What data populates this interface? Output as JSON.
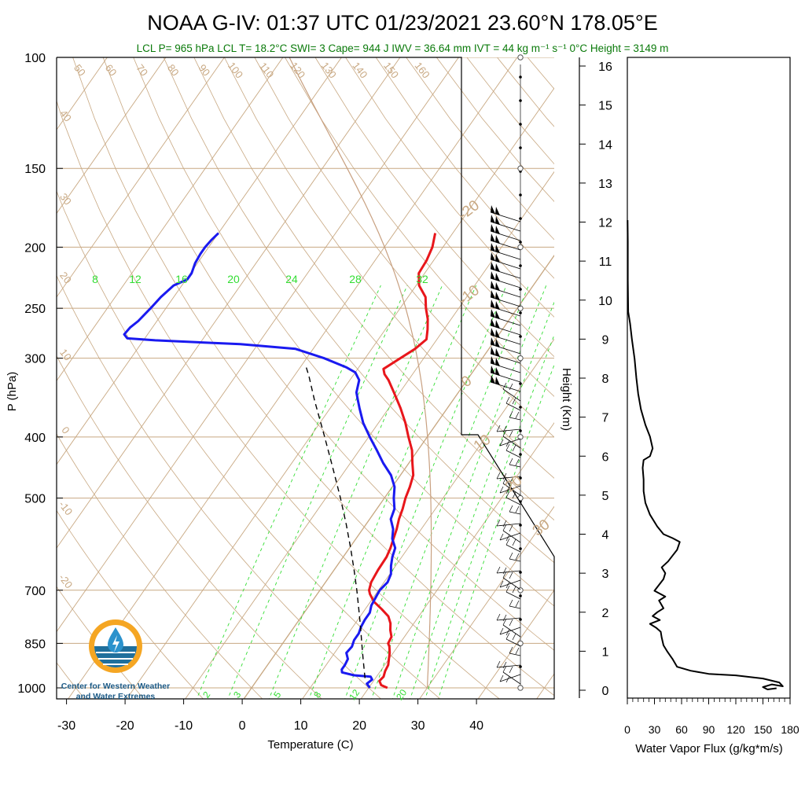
{
  "header": {
    "title": "NOAA G-IV: 01:37 UTC 01/23/2021  23.60°N 178.05°E",
    "subtitle": "LCL P= 965 hPa  LCL T= 18.2°C  SWI= 3  Cape= 944 J  IWV = 36.64 mm  IVT = 44 kg m⁻¹ s⁻¹  0°C Height = 3149 m"
  },
  "logo": {
    "line1": "Center for Western Weather",
    "line2": "and Water Extremes"
  },
  "colors": {
    "temperature": "#e8161b",
    "dewpoint": "#1a1af0",
    "parcel": "#000000",
    "isotherm": "#c8a882",
    "mixing_ratio": "#33dd33",
    "title_green": "#0a7a0a"
  },
  "chart_data": [
    {
      "type": "line",
      "name": "skew-t",
      "xlabel": "Temperature (C)",
      "ylabel": "P (hPa)",
      "xlim": [
        -34,
        52
      ],
      "ylim": [
        1050,
        100
      ],
      "y_scale": "log",
      "x_ticks": [
        -30,
        -20,
        -10,
        0,
        10,
        20,
        30,
        40
      ],
      "y_ticks": [
        100,
        150,
        200,
        250,
        300,
        400,
        500,
        700,
        850,
        1000
      ],
      "isotherm_labels": [
        "-20",
        "-10",
        "0",
        "10",
        "20",
        "30"
      ],
      "dry_adiabat_labels": [
        "50",
        "60",
        "70",
        "80",
        "90",
        "100",
        "110",
        "120",
        "130",
        "140",
        "150",
        "160"
      ],
      "dry_adiabat_left_labels": [
        "40",
        "30",
        "20",
        "10",
        "0",
        "-10",
        "-20"
      ],
      "mixing_ratio_labels_top": [
        "8",
        "12",
        "16",
        "20",
        "24",
        "28",
        "32"
      ],
      "mixing_ratio_labels_bottom": [
        "2",
        "3",
        "5",
        "8",
        "12",
        "20"
      ],
      "series": [
        {
          "name": "temperature",
          "points": [
            [
              1000,
              23.2
            ],
            [
              990,
              21.8
            ],
            [
              975,
              21.0
            ],
            [
              960,
              21.2
            ],
            [
              940,
              20.8
            ],
            [
              920,
              20.6
            ],
            [
              900,
              20.0
            ],
            [
              880,
              19.4
            ],
            [
              860,
              18.6
            ],
            [
              850,
              18.0
            ],
            [
              830,
              17.8
            ],
            [
              810,
              16.8
            ],
            [
              790,
              16.0
            ],
            [
              770,
              14.8
            ],
            [
              750,
              12.8
            ],
            [
              730,
              10.6
            ],
            [
              710,
              9.0
            ],
            [
              700,
              8.4
            ],
            [
              680,
              7.8
            ],
            [
              650,
              7.5
            ],
            [
              620,
              7.4
            ],
            [
              600,
              7.0
            ],
            [
              580,
              6.4
            ],
            [
              560,
              5.8
            ],
            [
              540,
              5.0
            ],
            [
              520,
              4.4
            ],
            [
              500,
              3.6
            ],
            [
              480,
              3.0
            ],
            [
              460,
              2.2
            ],
            [
              440,
              0.6
            ],
            [
              420,
              -1.0
            ],
            [
              400,
              -3.2
            ],
            [
              380,
              -5.4
            ],
            [
              360,
              -8.0
            ],
            [
              340,
              -11.0
            ],
            [
              325,
              -13.4
            ],
            [
              318,
              -14.8
            ],
            [
              312,
              -15.6
            ],
            [
              300,
              -14.0
            ],
            [
              290,
              -12.6
            ],
            [
              280,
              -11.8
            ],
            [
              270,
              -12.8
            ],
            [
              260,
              -14.0
            ],
            [
              250,
              -15.6
            ],
            [
              240,
              -17.0
            ],
            [
              230,
              -19.5
            ],
            [
              220,
              -21.0
            ],
            [
              210,
              -21.2
            ],
            [
              200,
              -21.8
            ],
            [
              190,
              -23.0
            ]
          ]
        },
        {
          "name": "dewpoint",
          "points": [
            [
              1000,
              20.2
            ],
            [
              985,
              19.2
            ],
            [
              970,
              19.6
            ],
            [
              960,
              19.0
            ],
            [
              955,
              16.0
            ],
            [
              945,
              13.6
            ],
            [
              935,
              13.2
            ],
            [
              920,
              13.2
            ],
            [
              900,
              13.0
            ],
            [
              880,
              12.0
            ],
            [
              860,
              12.2
            ],
            [
              840,
              11.8
            ],
            [
              820,
              11.8
            ],
            [
              800,
              11.4
            ],
            [
              780,
              11.2
            ],
            [
              760,
              11.2
            ],
            [
              740,
              10.6
            ],
            [
              720,
              10.4
            ],
            [
              700,
              10.2
            ],
            [
              680,
              10.6
            ],
            [
              660,
              10.2
            ],
            [
              640,
              9.2
            ],
            [
              620,
              8.4
            ],
            [
              600,
              7.8
            ],
            [
              580,
              6.2
            ],
            [
              560,
              5.2
            ],
            [
              540,
              3.6
            ],
            [
              520,
              3.0
            ],
            [
              500,
              1.6
            ],
            [
              480,
              0.4
            ],
            [
              460,
              -1.6
            ],
            [
              440,
              -4.4
            ],
            [
              420,
              -7.0
            ],
            [
              400,
              -9.8
            ],
            [
              380,
              -12.6
            ],
            [
              360,
              -15.0
            ],
            [
              350,
              -16.2
            ],
            [
              340,
              -17.4
            ],
            [
              325,
              -18.4
            ],
            [
              316,
              -20.0
            ],
            [
              310,
              -22.2
            ],
            [
              300,
              -27.0
            ],
            [
              290,
              -33.0
            ],
            [
              285,
              -43.0
            ],
            [
              281,
              -58.0
            ],
            [
              279,
              -63.0
            ],
            [
              275,
              -64.0
            ],
            [
              268,
              -63.8
            ],
            [
              262,
              -63.2
            ],
            [
              250,
              -62.6
            ],
            [
              240,
              -62.2
            ],
            [
              230,
              -61.4
            ],
            [
              225,
              -59.8
            ],
            [
              220,
              -59.8
            ],
            [
              212,
              -60.4
            ],
            [
              205,
              -60.6
            ],
            [
              200,
              -60.6
            ],
            [
              195,
              -60.4
            ],
            [
              190,
              -60.0
            ]
          ]
        },
        {
          "name": "parcel",
          "style": "dashed",
          "points": [
            [
              965,
              18.2
            ],
            [
              900,
              15.6
            ],
            [
              850,
              13.5
            ],
            [
              800,
              11.3
            ],
            [
              750,
              8.9
            ],
            [
              700,
              6.3
            ],
            [
              650,
              3.4
            ],
            [
              600,
              0.2
            ],
            [
              550,
              -3.4
            ],
            [
              500,
              -7.5
            ],
            [
              450,
              -12.2
            ],
            [
              400,
              -17.5
            ],
            [
              350,
              -23.6
            ],
            [
              320,
              -27.5
            ],
            [
              310,
              -29.0
            ]
          ]
        }
      ]
    },
    {
      "type": "line",
      "name": "water-vapor-flux",
      "xlabel": "Water Vapor Flux (g/kg*m/s)",
      "ylabel": "Height (Km)",
      "xlim": [
        0,
        180
      ],
      "ylim": [
        0,
        16.5
      ],
      "x_ticks": [
        0,
        30,
        60,
        90,
        120,
        150,
        180
      ],
      "y_ticks": [
        0,
        1,
        2,
        3,
        4,
        5,
        6,
        7,
        8,
        9,
        10,
        11,
        12,
        13,
        14,
        15,
        16
      ],
      "series": [
        {
          "name": "flux",
          "points": [
            [
              165,
              0.05
            ],
            [
              155,
              0.02
            ],
            [
              150,
              0.08
            ],
            [
              160,
              0.15
            ],
            [
              172,
              0.1
            ],
            [
              168,
              0.2
            ],
            [
              150,
              0.3
            ],
            [
              120,
              0.38
            ],
            [
              90,
              0.42
            ],
            [
              70,
              0.5
            ],
            [
              55,
              0.6
            ],
            [
              50,
              0.8
            ],
            [
              44,
              1.0
            ],
            [
              40,
              1.15
            ],
            [
              38,
              1.35
            ],
            [
              37,
              1.5
            ],
            [
              32,
              1.6
            ],
            [
              25,
              1.7
            ],
            [
              36,
              1.8
            ],
            [
              28,
              1.9
            ],
            [
              33,
              2.0
            ],
            [
              40,
              2.1
            ],
            [
              35,
              2.3
            ],
            [
              42,
              2.4
            ],
            [
              30,
              2.55
            ],
            [
              35,
              2.7
            ],
            [
              40,
              2.85
            ],
            [
              42,
              3.0
            ],
            [
              38,
              3.15
            ],
            [
              45,
              3.3
            ],
            [
              50,
              3.45
            ],
            [
              55,
              3.6
            ],
            [
              58,
              3.8
            ],
            [
              50,
              3.9
            ],
            [
              40,
              4.0
            ],
            [
              33,
              4.2
            ],
            [
              25,
              4.5
            ],
            [
              20,
              4.8
            ],
            [
              18,
              5.1
            ],
            [
              18,
              5.4
            ],
            [
              17,
              5.7
            ],
            [
              18,
              5.9
            ],
            [
              25,
              6.0
            ],
            [
              28,
              6.2
            ],
            [
              25,
              6.5
            ],
            [
              20,
              6.8
            ],
            [
              15,
              7.2
            ],
            [
              12,
              7.6
            ],
            [
              10,
              8.0
            ],
            [
              8,
              8.5
            ],
            [
              5,
              9.0
            ],
            [
              3,
              9.4
            ],
            [
              1,
              9.7
            ],
            [
              0.5,
              10.5
            ],
            [
              0.5,
              11.0
            ],
            [
              0.5,
              11.5
            ],
            [
              0.3,
              12.05
            ]
          ]
        }
      ]
    }
  ]
}
